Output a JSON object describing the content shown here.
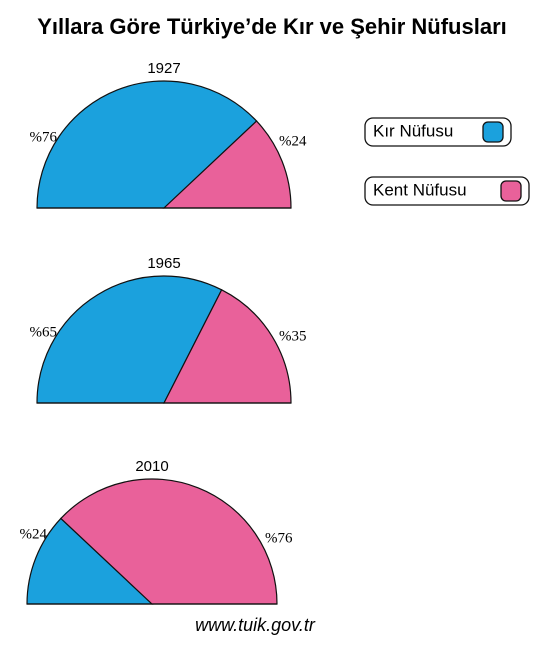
{
  "title": "Yıllara Göre Türkiye’de Kır ve Şehir Nüfusları",
  "source": "www.tuik.gov.tr",
  "chart_data": [
    {
      "type": "semipie",
      "title": "1927",
      "categories": [
        "Kır Nüfusu",
        "Kent Nüfusu"
      ],
      "colors": [
        "#1ba1dd",
        "#e9619a"
      ],
      "values": [
        76,
        24
      ],
      "value_labels": [
        "%76",
        "%24"
      ]
    },
    {
      "type": "semipie",
      "title": "1965",
      "categories": [
        "Kır Nüfusu",
        "Kent Nüfusu"
      ],
      "colors": [
        "#1ba1dd",
        "#e9619a"
      ],
      "values": [
        65,
        35
      ],
      "value_labels": [
        "%65",
        "%35"
      ]
    },
    {
      "type": "semipie",
      "title": "2010",
      "categories": [
        "Kır Nüfusu",
        "Kent Nüfusu"
      ],
      "colors": [
        "#1ba1dd",
        "#e9619a"
      ],
      "values": [
        24,
        76
      ],
      "value_labels": [
        "%24",
        "%76"
      ]
    }
  ]
}
